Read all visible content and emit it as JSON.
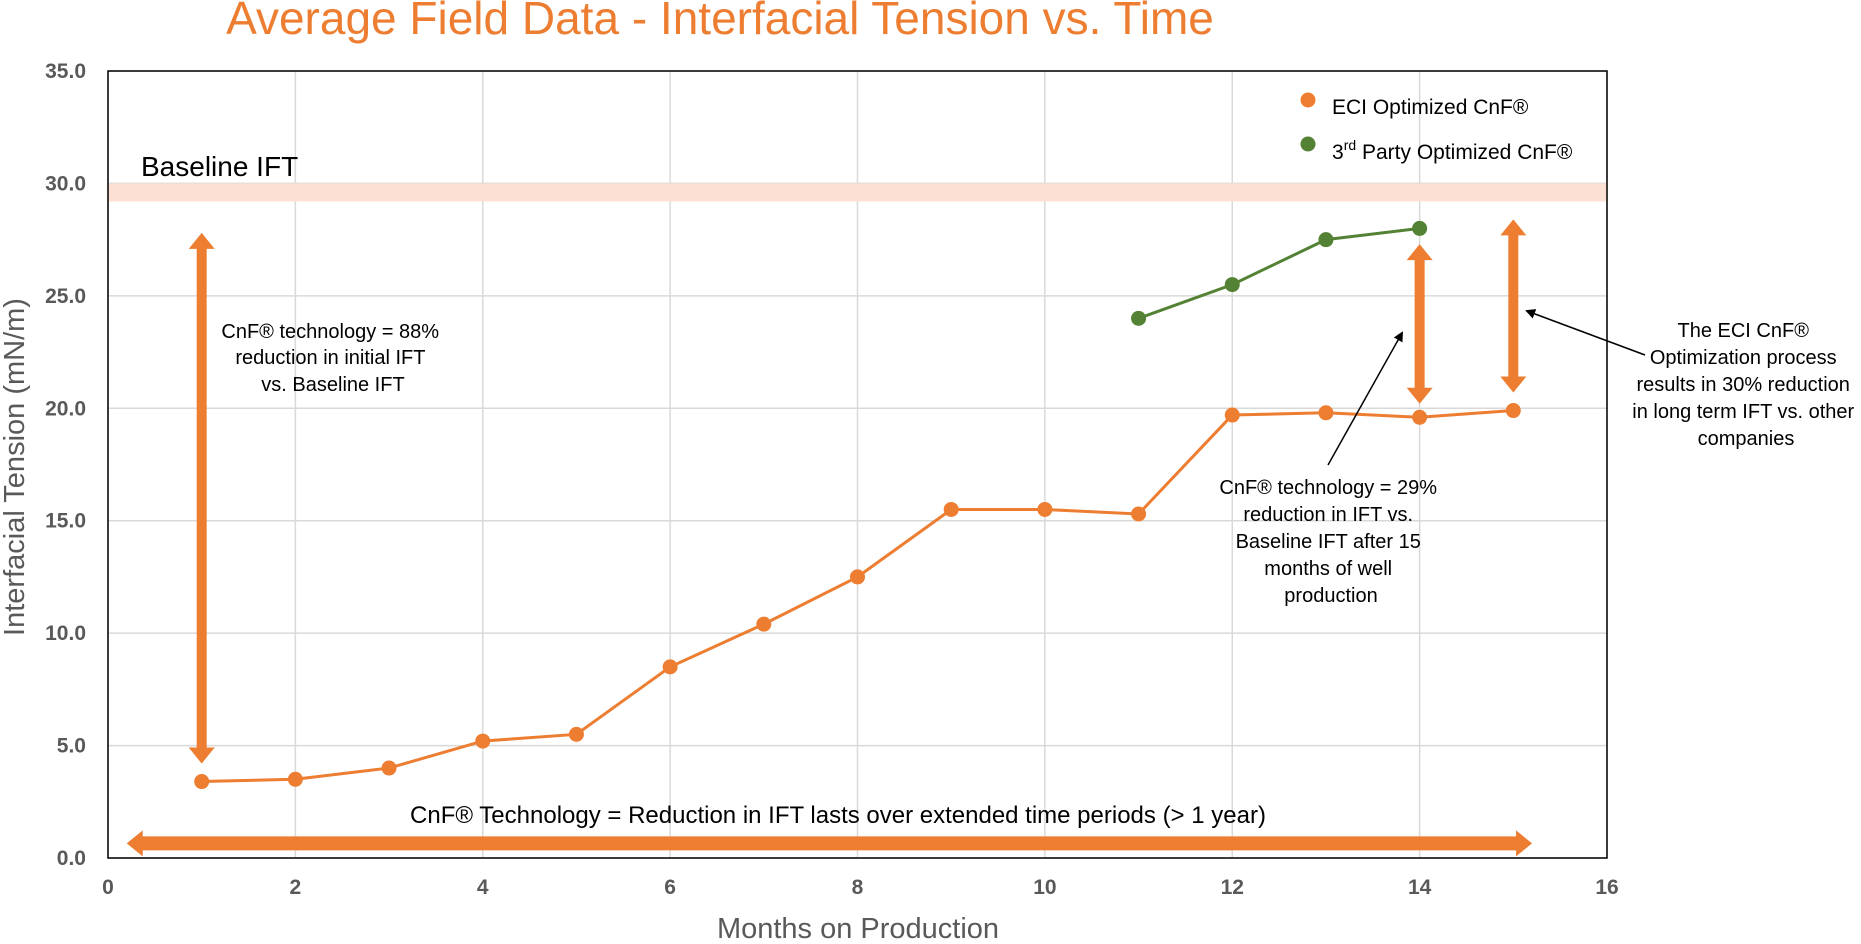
{
  "chart_data": {
    "type": "line",
    "title": "Average Field Data - Interfacial Tension vs. Time",
    "xlabel": "Months on Production",
    "ylabel": "Interfacial Tension (mN/m)",
    "xlim": [
      0,
      16
    ],
    "ylim": [
      0,
      35
    ],
    "xticks": [
      0,
      2,
      4,
      6,
      8,
      10,
      12,
      14,
      16
    ],
    "xtick_labels": [
      "0",
      "2",
      "4",
      "6",
      "8",
      "10",
      "12",
      "14",
      "16"
    ],
    "yticks": [
      0,
      5,
      10,
      15,
      20,
      25,
      30,
      35
    ],
    "ytick_labels": [
      "0.0",
      "5.0",
      "10.0",
      "15.0",
      "20.0",
      "25.0",
      "30.0",
      "35.0"
    ],
    "grid": true,
    "legend_position": "top-right",
    "series": [
      {
        "name": "ECI Optimized CnF®",
        "color": "#ED7D31",
        "x": [
          1,
          2,
          3,
          4,
          5,
          6,
          7,
          8,
          9,
          10,
          11,
          12,
          13,
          14,
          15
        ],
        "y": [
          3.4,
          3.5,
          4.0,
          5.2,
          5.5,
          8.5,
          10.4,
          12.5,
          15.5,
          15.5,
          15.3,
          19.7,
          19.8,
          19.6,
          19.9
        ]
      },
      {
        "name": "3rd Party Optimized CnF®",
        "name_prefix": "3",
        "name_superscript": "rd",
        "name_suffix": " Party Optimized CnF®",
        "color": "#548235",
        "x": [
          11,
          12,
          13,
          14
        ],
        "y": [
          24.0,
          25.5,
          27.5,
          28.0
        ]
      }
    ],
    "baseline": {
      "label": "Baseline IFT",
      "y_from": 29.2,
      "y_to": 30.0,
      "color": "#FBE0D3"
    },
    "annotations": {
      "initial": [
        "CnF® technology = 88%",
        "reduction in initial IFT",
        "vs. Baseline IFT"
      ],
      "after15": [
        "CnF® technology = 29%",
        "reduction in IFT vs.",
        "Baseline IFT after 15",
        "months of well",
        "production"
      ],
      "longterm": [
        "The ECI CnF®",
        "Optimization process",
        "results in 30% reduction",
        "in long term IFT vs. other",
        "companies"
      ],
      "bottom": "CnF® Technology = Reduction in IFT lasts over extended time periods (> 1 year)"
    },
    "arrow_color": "#ED7D31"
  }
}
